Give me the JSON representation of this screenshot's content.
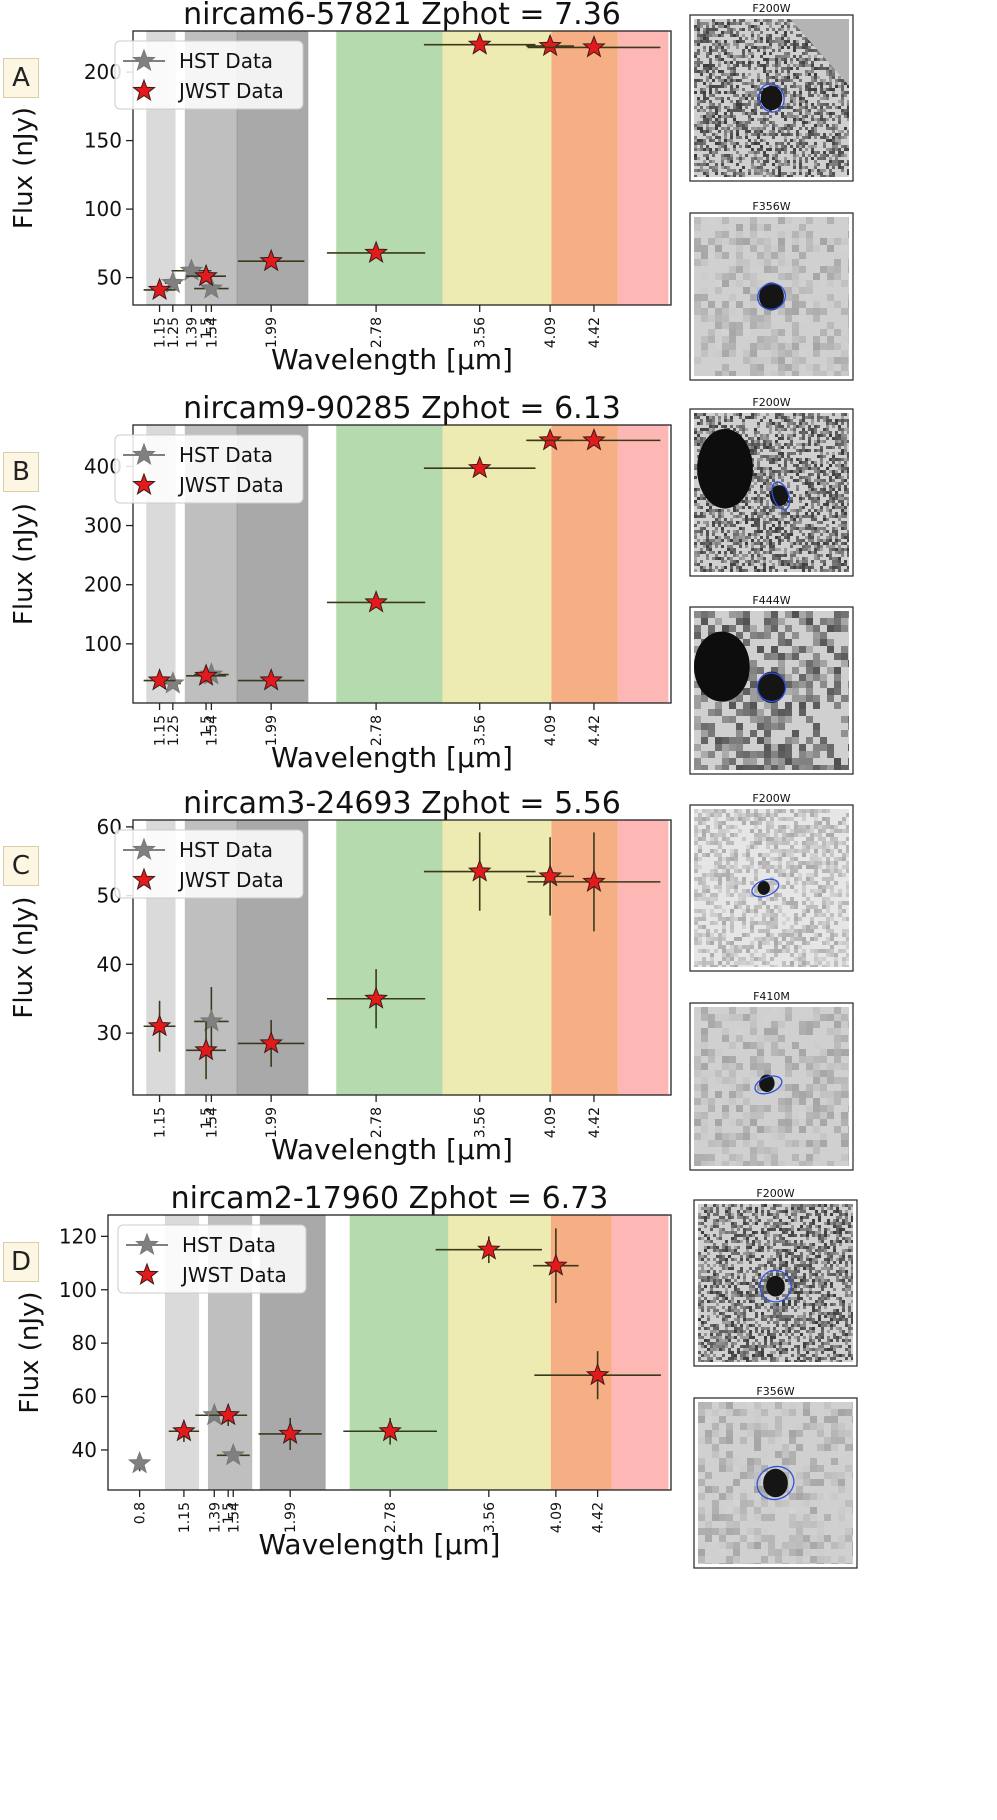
{
  "colors": {
    "hst": "#808080",
    "jwst": "#e31a1c",
    "band_light": "#d4d4d4",
    "band_mid": "#b4b4b4",
    "band_dark": "#9a9a9a",
    "band_green": "#a8d4a0",
    "band_yellow": "#ebe7a4",
    "band_orange": "#f5a070",
    "band_red": "#fdaaa8"
  },
  "legend": {
    "hst": "HST Data",
    "jwst": "JWST Data"
  },
  "chart_data": [
    {
      "panel": "A",
      "type": "scatter",
      "title": "nircam6-57821 Zphot = 7.36",
      "xlabel": "Wavelength [$\\mu$m]",
      "ylabel": "Flux (nJy)",
      "xlim": [
        0.95,
        5.0
      ],
      "ylim": [
        30,
        230
      ],
      "yticks": [
        50,
        100,
        150,
        200
      ],
      "xticks": [
        "1.15",
        "1.25",
        "1.39",
        "1.5",
        "1.54",
        "1.99",
        "2.78",
        "3.56",
        "4.09",
        "4.42"
      ],
      "bands": [
        {
          "x0": 1.05,
          "x1": 1.27,
          "color": "band_light"
        },
        {
          "x0": 1.34,
          "x1": 1.74,
          "color": "band_mid"
        },
        {
          "x0": 1.73,
          "x1": 2.27,
          "color": "band_dark"
        },
        {
          "x0": 2.48,
          "x1": 3.28,
          "color": "band_green"
        },
        {
          "x0": 3.28,
          "x1": 4.1,
          "color": "band_yellow"
        },
        {
          "x0": 4.1,
          "x1": 4.6,
          "color": "band_orange"
        },
        {
          "x0": 4.6,
          "x1": 4.98,
          "color": "band_red"
        }
      ],
      "hst": [
        {
          "x": 1.25,
          "y": 46,
          "xerr": 0.06,
          "yerr": 0
        },
        {
          "x": 1.39,
          "y": 55,
          "xerr": 0.15,
          "yerr": 0
        },
        {
          "x": 1.54,
          "y": 42,
          "xerr": 0.13,
          "yerr": 0
        }
      ],
      "jwst": [
        {
          "x": 1.15,
          "y": 41,
          "xerr": 0.12,
          "yerr": 0
        },
        {
          "x": 1.5,
          "y": 51,
          "xerr": 0.15,
          "yerr": 0
        },
        {
          "x": 1.99,
          "y": 62,
          "xerr": 0.25,
          "yerr": 0
        },
        {
          "x": 2.78,
          "y": 68,
          "xerr": 0.37,
          "yerr": 0
        },
        {
          "x": 3.56,
          "y": 220,
          "xerr": 0.42,
          "yerr": 0
        },
        {
          "x": 4.09,
          "y": 219,
          "xerr": 0.18,
          "yerr": 0
        },
        {
          "x": 4.42,
          "y": 218,
          "xerr": 0.5,
          "yerr": 0
        }
      ],
      "cutouts": [
        {
          "label": "F200W",
          "kind": "noisy",
          "corner": true,
          "blob": [
            0.5,
            0.5,
            0.07
          ],
          "ellipse": [
            0.5,
            0.5,
            0.08,
            0.09
          ]
        },
        {
          "label": "F356W",
          "kind": "smooth",
          "corner": false,
          "blob": [
            0.5,
            0.5,
            0.08
          ],
          "ellipse": [
            0.5,
            0.5,
            0.09,
            0.08
          ]
        }
      ]
    },
    {
      "panel": "B",
      "type": "scatter",
      "title": "nircam9-90285 Zphot = 6.13",
      "xlabel": "Wavelength [$\\mu$m]",
      "ylabel": "Flux (nJy)",
      "xlim": [
        0.95,
        5.0
      ],
      "ylim": [
        0,
        470
      ],
      "yticks": [
        100,
        200,
        300,
        400
      ],
      "xticks": [
        "1.15",
        "1.25",
        "1.5",
        "1.54",
        "1.99",
        "2.78",
        "3.56",
        "4.09",
        "4.42"
      ],
      "bands": [
        {
          "x0": 1.05,
          "x1": 1.27,
          "color": "band_light"
        },
        {
          "x0": 1.34,
          "x1": 1.74,
          "color": "band_mid"
        },
        {
          "x0": 1.73,
          "x1": 2.27,
          "color": "band_dark"
        },
        {
          "x0": 2.48,
          "x1": 3.28,
          "color": "band_green"
        },
        {
          "x0": 3.28,
          "x1": 4.1,
          "color": "band_yellow"
        },
        {
          "x0": 4.1,
          "x1": 4.6,
          "color": "band_orange"
        },
        {
          "x0": 4.6,
          "x1": 4.98,
          "color": "band_red"
        }
      ],
      "hst": [
        {
          "x": 1.25,
          "y": 33,
          "xerr": 0.06,
          "yerr": 0
        },
        {
          "x": 1.54,
          "y": 48,
          "xerr": 0.13,
          "yerr": 0
        }
      ],
      "jwst": [
        {
          "x": 1.15,
          "y": 38,
          "xerr": 0.12,
          "yerr": 0
        },
        {
          "x": 1.5,
          "y": 46,
          "xerr": 0.15,
          "yerr": 0
        },
        {
          "x": 1.99,
          "y": 38,
          "xerr": 0.25,
          "yerr": 0
        },
        {
          "x": 2.78,
          "y": 170,
          "xerr": 0.37,
          "yerr": 0
        },
        {
          "x": 3.56,
          "y": 397,
          "xerr": 0.42,
          "yerr": 0
        },
        {
          "x": 4.09,
          "y": 444,
          "xerr": 0.18,
          "yerr": 0
        },
        {
          "x": 4.42,
          "y": 444,
          "xerr": 0.5,
          "yerr": 0
        }
      ],
      "cutouts": [
        {
          "label": "F200W",
          "kind": "noisy",
          "corner": false,
          "blob": [
            0.55,
            0.52,
            0.06
          ],
          "ellipse": [
            0.56,
            0.52,
            0.05,
            0.09
          ],
          "bigblob": [
            0.2,
            0.35,
            0.18,
            0.25
          ]
        },
        {
          "label": "F444W",
          "kind": "mottled",
          "corner": false,
          "blob": [
            0.5,
            0.48,
            0.09
          ],
          "ellipse": [
            0.5,
            0.48,
            0.09,
            0.09
          ],
          "bigblob": [
            0.18,
            0.35,
            0.18,
            0.22
          ]
        }
      ]
    },
    {
      "panel": "C",
      "type": "scatter",
      "title": "nircam3-24693 Zphot = 5.56",
      "xlabel": "Wavelength [$\\mu$m]",
      "ylabel": "Flux (nJy)",
      "xlim": [
        0.95,
        5.0
      ],
      "ylim": [
        21,
        61
      ],
      "yticks": [
        30,
        40,
        50,
        60
      ],
      "xticks": [
        "1.15",
        "1.5",
        "1.54",
        "1.99",
        "2.78",
        "3.56",
        "4.09",
        "4.42"
      ],
      "bands": [
        {
          "x0": 1.05,
          "x1": 1.27,
          "color": "band_light"
        },
        {
          "x0": 1.34,
          "x1": 1.74,
          "color": "band_mid"
        },
        {
          "x0": 1.73,
          "x1": 2.27,
          "color": "band_dark"
        },
        {
          "x0": 2.48,
          "x1": 3.28,
          "color": "band_green"
        },
        {
          "x0": 3.28,
          "x1": 4.1,
          "color": "band_yellow"
        },
        {
          "x0": 4.1,
          "x1": 4.6,
          "color": "band_orange"
        },
        {
          "x0": 4.6,
          "x1": 4.98,
          "color": "band_red"
        }
      ],
      "hst": [
        {
          "x": 1.54,
          "y": 31.7,
          "xerr": 0.13,
          "yerr": 5.0
        }
      ],
      "jwst": [
        {
          "x": 1.15,
          "y": 31,
          "xerr": 0.12,
          "yerr": 3.7
        },
        {
          "x": 1.5,
          "y": 27.5,
          "xerr": 0.15,
          "yerr": 4.2
        },
        {
          "x": 1.99,
          "y": 28.5,
          "xerr": 0.25,
          "yerr": 3.4
        },
        {
          "x": 2.78,
          "y": 35,
          "xerr": 0.37,
          "yerr": 4.3
        },
        {
          "x": 3.56,
          "y": 53.5,
          "xerr": 0.42,
          "yerr": 5.7
        },
        {
          "x": 4.09,
          "y": 52.8,
          "xerr": 0.18,
          "yerr": 5.7
        },
        {
          "x": 4.42,
          "y": 52,
          "xerr": 0.5,
          "yerr": 7.2
        }
      ],
      "cutouts": [
        {
          "label": "F200W",
          "kind": "light",
          "corner": false,
          "blob": [
            0.45,
            0.5,
            0.04
          ],
          "ellipse": [
            0.46,
            0.5,
            0.09,
            0.05
          ]
        },
        {
          "label": "F410M",
          "kind": "smooth",
          "corner": false,
          "blob": [
            0.47,
            0.48,
            0.05
          ],
          "ellipse": [
            0.48,
            0.49,
            0.09,
            0.05
          ]
        }
      ]
    },
    {
      "panel": "D",
      "type": "scatter",
      "title": "nircam2-17960 Zphot = 6.73",
      "xlabel": "Wavelength [$\\mu$m]",
      "ylabel": "Flux (nJy)",
      "xlim": [
        0.55,
        5.0
      ],
      "ylim": [
        25,
        128
      ],
      "yticks": [
        40,
        60,
        80,
        100,
        120
      ],
      "xticks": [
        "0.8",
        "1.15",
        "1.39",
        "1.5",
        "1.54",
        "1.99",
        "2.78",
        "3.56",
        "4.09",
        "4.42"
      ],
      "bands": [
        {
          "x0": 1.0,
          "x1": 1.27,
          "color": "band_light"
        },
        {
          "x0": 1.34,
          "x1": 1.69,
          "color": "band_mid"
        },
        {
          "x0": 1.75,
          "x1": 2.27,
          "color": "band_dark"
        },
        {
          "x0": 2.46,
          "x1": 3.24,
          "color": "band_green"
        },
        {
          "x0": 3.24,
          "x1": 4.05,
          "color": "band_yellow"
        },
        {
          "x0": 4.05,
          "x1": 4.53,
          "color": "band_orange"
        },
        {
          "x0": 4.53,
          "x1": 4.98,
          "color": "band_red"
        }
      ],
      "hst": [
        {
          "x": 0.8,
          "y": 35,
          "xerr": 0,
          "yerr": 3
        },
        {
          "x": 1.39,
          "y": 53,
          "xerr": 0.15,
          "yerr": 0
        },
        {
          "x": 1.54,
          "y": 38,
          "xerr": 0.13,
          "yerr": 0
        }
      ],
      "jwst": [
        {
          "x": 1.15,
          "y": 47,
          "xerr": 0.12,
          "yerr": 4
        },
        {
          "x": 1.5,
          "y": 53,
          "xerr": 0.15,
          "yerr": 4
        },
        {
          "x": 1.99,
          "y": 46,
          "xerr": 0.25,
          "yerr": 6
        },
        {
          "x": 2.78,
          "y": 47,
          "xerr": 0.37,
          "yerr": 5
        },
        {
          "x": 3.56,
          "y": 115,
          "xerr": 0.42,
          "yerr": 5
        },
        {
          "x": 4.09,
          "y": 109,
          "xerr": 0.18,
          "yerr": 14
        },
        {
          "x": 4.42,
          "y": 68,
          "xerr": 0.5,
          "yerr": 9
        }
      ],
      "cutouts": [
        {
          "label": "F200W",
          "kind": "noisy",
          "corner": false,
          "blob": [
            0.5,
            0.52,
            0.06
          ],
          "ellipse": [
            0.5,
            0.52,
            0.1,
            0.1
          ]
        },
        {
          "label": "F356W",
          "kind": "mottled-light",
          "corner": false,
          "blob": [
            0.5,
            0.5,
            0.08
          ],
          "ellipse": [
            0.5,
            0.5,
            0.12,
            0.1
          ]
        }
      ]
    }
  ]
}
